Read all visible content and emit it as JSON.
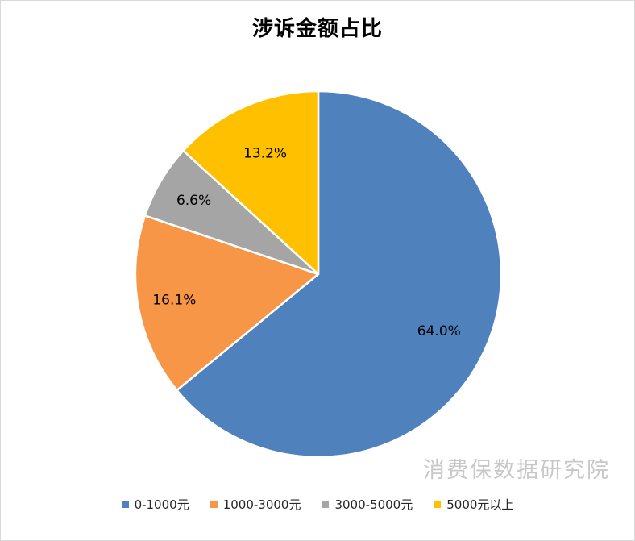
{
  "chart_data": {
    "type": "pie",
    "title": "涉诉金额占比",
    "categories": [
      "0-1000元",
      "1000-3000元",
      "3000-5000元",
      "5000元以上"
    ],
    "values": [
      64.0,
      16.1,
      6.6,
      13.2
    ],
    "data_labels": [
      "64.0%",
      "16.1%",
      "6.6%",
      "13.2%"
    ],
    "colors": [
      "#4f81bd",
      "#f79646",
      "#a5a5a5",
      "#ffc000"
    ],
    "legend_position": "bottom",
    "start_angle": "12 o'clock",
    "direction": "clockwise"
  },
  "watermark": "消费保数据研究院"
}
